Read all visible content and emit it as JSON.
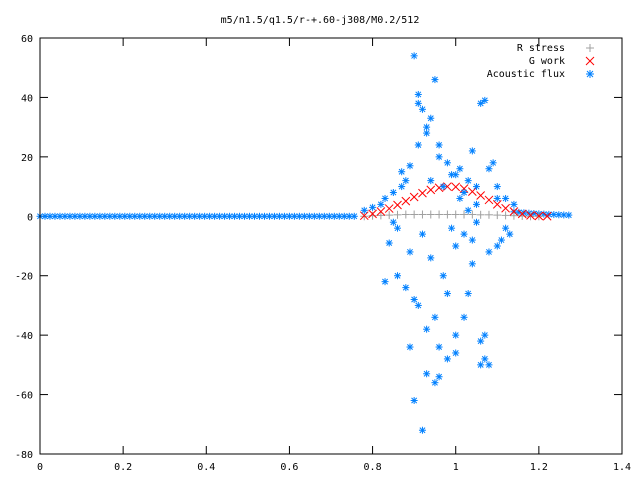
{
  "chart_data": {
    "type": "scatter",
    "title": "m5/n1.5/q1.5/r-+.60-j308/M0.2/512",
    "xlabel": "",
    "ylabel": "",
    "xlim": [
      0,
      1.4
    ],
    "ylim": [
      -80,
      60
    ],
    "xticks": [
      "0",
      "0.2",
      "0.4",
      "0.6",
      "0.8",
      "1",
      "1.2",
      "1.4"
    ],
    "yticks": [
      "60",
      "40",
      "20",
      "0",
      "-20",
      "-40",
      "-60",
      "-80"
    ],
    "grid": false,
    "legend_position": "top-right",
    "series": [
      {
        "name": "R stress",
        "marker": "plus",
        "color": "#a0a0a0",
        "x": [
          0.78,
          0.8,
          0.82,
          0.84,
          0.86,
          0.88,
          0.9,
          0.92,
          0.94,
          0.96,
          0.98,
          1.0,
          1.02,
          1.04,
          1.06,
          1.08,
          1.1,
          1.12,
          1.14,
          1.16,
          1.18,
          1.2
        ],
        "y": [
          0,
          0.2,
          0.3,
          0.4,
          0.5,
          0.6,
          0.6,
          0.6,
          0.6,
          0.6,
          0.6,
          0.6,
          0.6,
          0.6,
          0.5,
          0.5,
          0.4,
          0.3,
          0.2,
          0.1,
          0,
          0
        ]
      },
      {
        "name": "G work",
        "marker": "cross",
        "color": "#ff0000",
        "x": [
          0.78,
          0.8,
          0.82,
          0.84,
          0.86,
          0.88,
          0.9,
          0.92,
          0.94,
          0.96,
          0.98,
          1.0,
          1.02,
          1.04,
          1.06,
          1.08,
          1.1,
          1.12,
          1.14,
          1.16,
          1.18,
          1.2,
          1.22
        ],
        "y": [
          0.2,
          0.8,
          1.6,
          2.6,
          3.8,
          5.1,
          6.5,
          7.8,
          8.9,
          9.6,
          10.0,
          9.9,
          9.3,
          8.3,
          7.0,
          5.5,
          4.0,
          2.7,
          1.6,
          0.8,
          0.3,
          0.1,
          0
        ]
      },
      {
        "name": "Acoustic flux",
        "marker": "star",
        "color": "#0080ff",
        "x": [
          0.78,
          0.8,
          0.82,
          0.83,
          0.84,
          0.85,
          0.86,
          0.87,
          0.88,
          0.89,
          0.9,
          0.91,
          0.92,
          0.93,
          0.94,
          0.95,
          0.96,
          0.97,
          0.98,
          0.99,
          1.0,
          1.01,
          1.02,
          1.03,
          1.04,
          1.05,
          1.06,
          1.07,
          1.08,
          1.09,
          1.1,
          1.11,
          1.12,
          1.13,
          1.14,
          0.83,
          0.85,
          0.86,
          0.88,
          0.89,
          0.9,
          0.91,
          0.92,
          0.93,
          0.94,
          0.95,
          0.96,
          0.97,
          0.98,
          0.99,
          1.0,
          1.01,
          1.02,
          1.03,
          1.04,
          1.05,
          1.06,
          1.07,
          1.08,
          1.1,
          1.12,
          0.87,
          0.89,
          0.9,
          0.91,
          0.92,
          0.93,
          0.94,
          0.95,
          0.96,
          0.98,
          1.0,
          1.02,
          1.04,
          1.06,
          1.07,
          0.91,
          0.93,
          0.96,
          1.0,
          1.03,
          1.05,
          1.08,
          1.1
        ],
        "y": [
          2,
          3,
          4,
          6,
          -9,
          8,
          -4,
          10,
          12,
          -12,
          54,
          41,
          36,
          30,
          -14,
          46,
          24,
          -20,
          18,
          14,
          -10,
          16,
          8,
          -26,
          22,
          4,
          38,
          39,
          -12,
          18,
          10,
          -8,
          6,
          -6,
          4,
          -22,
          -2,
          -20,
          -24,
          17,
          -28,
          -30,
          -6,
          -38,
          12,
          -34,
          -44,
          10,
          -48,
          -4,
          -40,
          6,
          -34,
          2,
          -8,
          -2,
          -42,
          -40,
          -50,
          -10,
          -4,
          15,
          -44,
          -62,
          38,
          -72,
          -53,
          33,
          -56,
          -54,
          -26,
          -46,
          -6,
          -16,
          -50,
          -48,
          24,
          28,
          20,
          14,
          12,
          10,
          16,
          6
        ]
      }
    ]
  }
}
